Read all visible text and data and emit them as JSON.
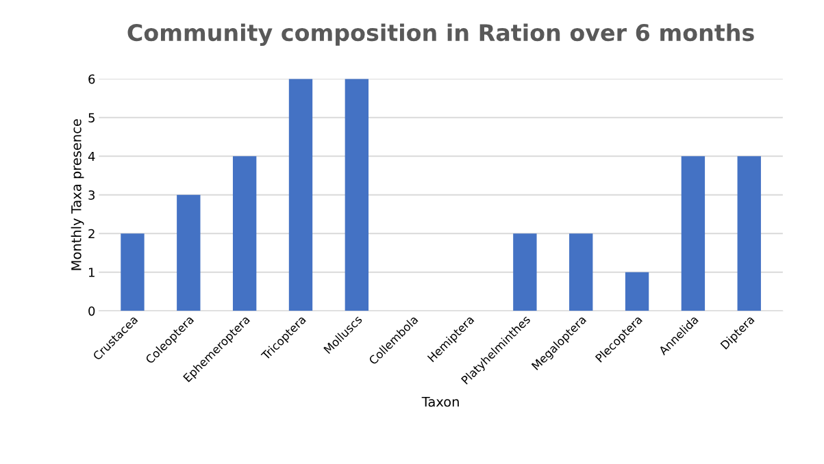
{
  "chart_data": {
    "type": "bar",
    "title": "Community composition in Ration over 6 months",
    "xlabel": "Taxon",
    "ylabel": "Monthly Taxa presence",
    "categories": [
      "Crustacea",
      "Coleoptera",
      "Ephemeroptera",
      "Tricoptera",
      "Molluscs",
      "Collembola",
      "Hemiptera",
      "Platyhelminthes",
      "Megaloptera",
      "Plecoptera",
      "Annelida",
      "Diptera"
    ],
    "values": [
      2,
      3,
      4,
      6,
      6,
      0,
      0,
      2,
      2,
      1,
      4,
      4
    ],
    "color": "#4472c4",
    "ylim": [
      0,
      6
    ],
    "yticks": [
      0,
      1,
      2,
      3,
      4,
      5,
      6
    ],
    "grid": "y"
  }
}
